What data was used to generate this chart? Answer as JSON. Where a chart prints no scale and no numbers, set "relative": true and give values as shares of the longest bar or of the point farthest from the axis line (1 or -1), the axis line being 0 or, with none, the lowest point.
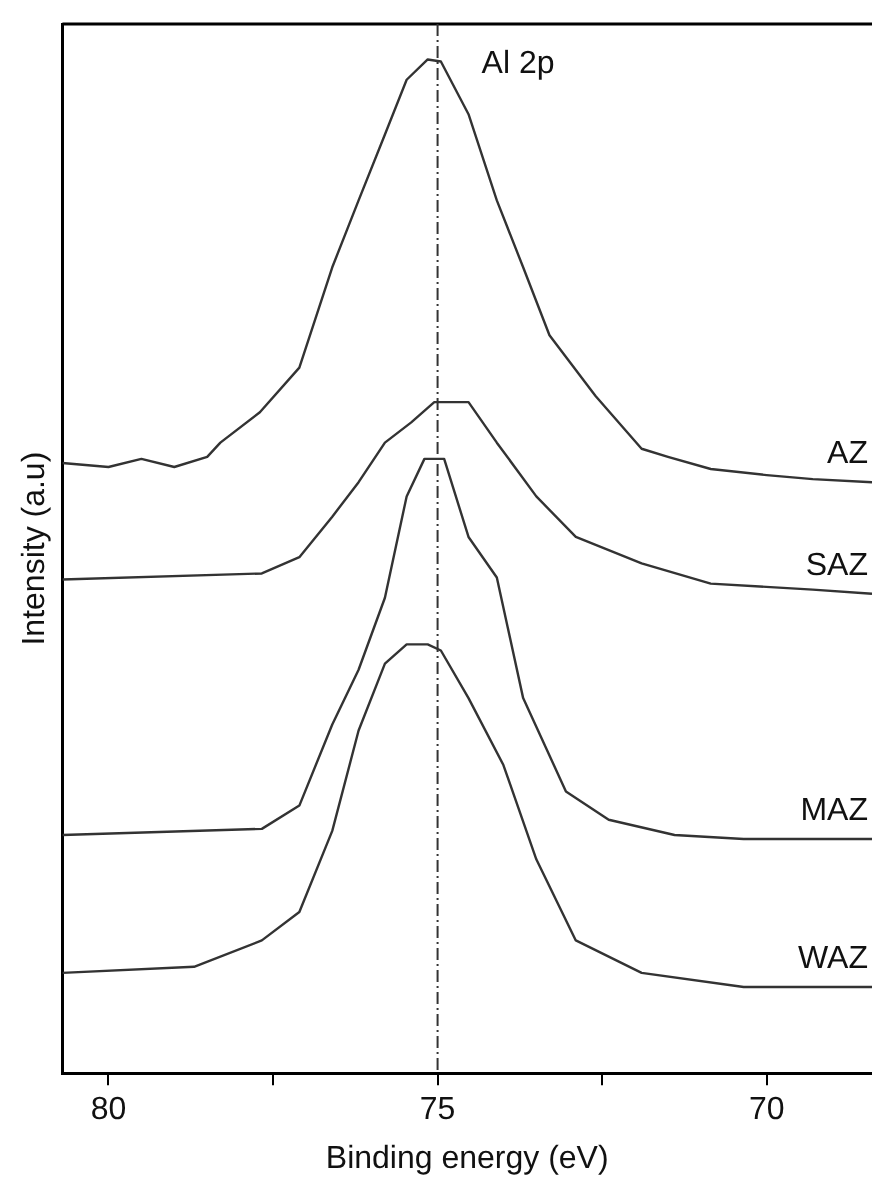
{
  "chart_data": {
    "type": "line",
    "relative": true,
    "xlabel": "Binding energy (eV)",
    "ylabel": "Intensity (a.u)",
    "annotations": [
      "Al 2p"
    ],
    "xlim": [
      80.7,
      68.4
    ],
    "xticks": [
      80,
      {
        "value": 77.5,
        "label": null
      },
      75,
      {
        "value": 72.5,
        "label": null
      },
      70
    ],
    "grid": false,
    "legend": false,
    "marker": "none",
    "line_style": "solid",
    "tick_labels": "x",
    "ref_lines": [
      {
        "axis": "x",
        "value": 75,
        "label": null,
        "color": "#333333",
        "line_style": "dashed"
      }
    ],
    "series": [
      {
        "name": "AZ",
        "color": "#333333",
        "x": [
          80.7,
          80,
          79.5,
          79,
          78.5,
          78.3,
          77.7,
          77.1,
          76.6,
          76.2,
          75.8,
          75.47,
          75.15,
          74.95,
          74.53,
          74.1,
          73.7,
          73.3,
          72.6,
          71.9,
          71.5,
          70.85,
          70,
          69.3,
          68.4
        ],
        "values": [
          0.602,
          0.598,
          0.606,
          0.598,
          0.608,
          0.622,
          0.652,
          0.696,
          0.795,
          0.861,
          0.926,
          0.98,
          1,
          0.998,
          0.946,
          0.861,
          0.795,
          0.728,
          0.668,
          0.616,
          0.608,
          0.596,
          0.59,
          0.586,
          0.583
        ]
      },
      {
        "name": "SAZ",
        "color": "#333333",
        "x": [
          80.7,
          77.67,
          77.1,
          76.6,
          76.2,
          75.8,
          75.4,
          75.05,
          74.53,
          74.1,
          73.5,
          72.9,
          71.9,
          70.85,
          69.3,
          68.4
        ],
        "values": [
          0.487,
          0.493,
          0.509,
          0.549,
          0.583,
          0.622,
          0.642,
          0.662,
          0.662,
          0.622,
          0.569,
          0.529,
          0.503,
          0.483,
          0.477,
          0.473
        ]
      },
      {
        "name": "MAZ",
        "color": "#333333",
        "x": [
          80.7,
          77.67,
          77.1,
          76.6,
          76.2,
          75.8,
          75.47,
          75.2,
          74.9,
          74.53,
          74.1,
          73.7,
          73.05,
          72.4,
          71.4,
          70.35,
          68.4
        ],
        "values": [
          0.235,
          0.241,
          0.264,
          0.344,
          0.398,
          0.469,
          0.569,
          0.606,
          0.606,
          0.529,
          0.489,
          0.37,
          0.278,
          0.25,
          0.235,
          0.231,
          0.231
        ]
      },
      {
        "name": "WAZ",
        "color": "#333333",
        "x": [
          80.7,
          78.7,
          77.67,
          77.1,
          76.6,
          76.2,
          75.8,
          75.47,
          75.15,
          74.95,
          74.53,
          74,
          73.5,
          72.9,
          71.9,
          70.35,
          68.4
        ],
        "values": [
          0.099,
          0.105,
          0.131,
          0.159,
          0.239,
          0.338,
          0.404,
          0.423,
          0.423,
          0.417,
          0.37,
          0.304,
          0.211,
          0.131,
          0.099,
          0.085,
          0.085
        ]
      }
    ]
  }
}
